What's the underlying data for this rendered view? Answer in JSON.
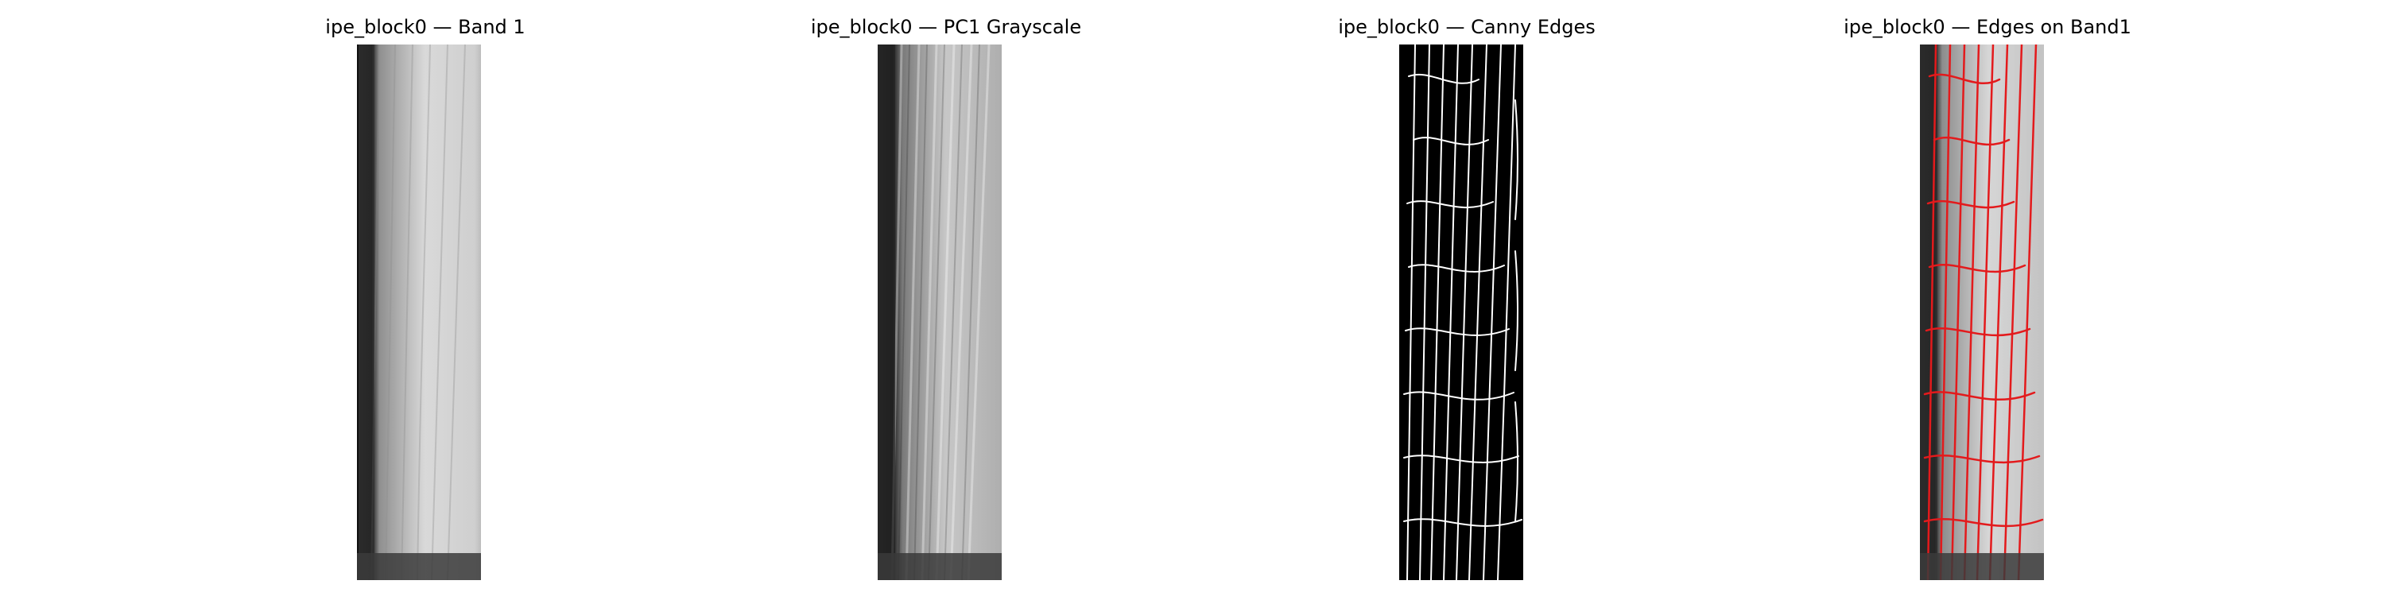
{
  "figure": {
    "panels": [
      {
        "title": "ipe_block0 — Band 1",
        "kind": "band-grayscale"
      },
      {
        "title": "ipe_block0 — PC1 Grayscale",
        "kind": "pc1-grayscale"
      },
      {
        "title": "ipe_block0 — Canny Edges",
        "kind": "edge-map"
      },
      {
        "title": "ipe_block0 — Edges on Band1",
        "kind": "edge-overlay"
      }
    ],
    "colors": {
      "background": "#ffffff",
      "edge_white": "#ffffff",
      "edge_red": "#e31a1c",
      "dark_border": "#2b2b2b",
      "black": "#000000"
    }
  }
}
